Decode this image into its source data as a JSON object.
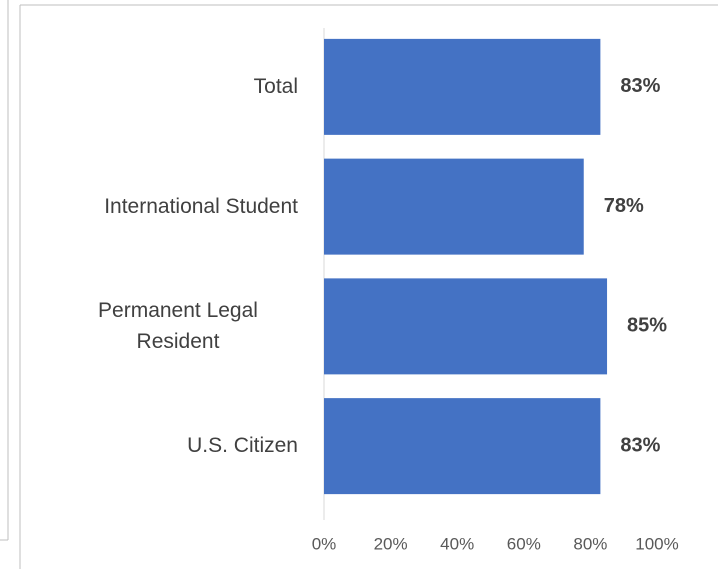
{
  "chart_data": {
    "type": "bar",
    "orientation": "horizontal",
    "categories": [
      "Total",
      "International Student",
      "Permanent Legal Resident",
      "U.S. Citizen"
    ],
    "values": [
      83,
      78,
      85,
      83
    ],
    "value_labels": [
      "83%",
      "78%",
      "85%",
      "83%"
    ],
    "color": "#4472c4",
    "xlim": [
      0,
      100
    ],
    "xticks": [
      {
        "value": 0,
        "label": "0%"
      },
      {
        "value": 20,
        "label": "20%"
      },
      {
        "value": 40,
        "label": "40%"
      },
      {
        "value": 60,
        "label": "60%"
      },
      {
        "value": 80,
        "label": "80%"
      },
      {
        "value": 100,
        "label": "100%"
      }
    ],
    "grid": false
  }
}
